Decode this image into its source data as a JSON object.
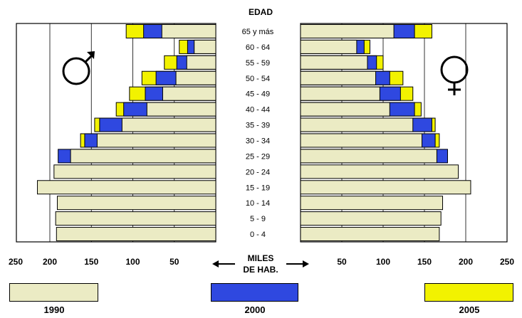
{
  "chart_data": {
    "type": "bar",
    "title": "EDAD",
    "axis_unit_label": [
      "MILES",
      "DE HAB."
    ],
    "categories": [
      "0 - 4",
      "5 - 9",
      "10 - 14",
      "15 - 19",
      "20 - 24",
      "25 - 29",
      "30 - 34",
      "35 - 39",
      "40 - 44",
      "45 - 49",
      "50 - 54",
      "55 - 59",
      "60 - 64",
      "65 y más"
    ],
    "xlim": [
      0,
      250
    ],
    "x_ticks": [
      "250",
      "200",
      "150",
      "100",
      "50",
      "50",
      "100",
      "150",
      "200",
      "250"
    ],
    "grid": true,
    "panels": [
      {
        "side": "male",
        "symbol": "♂",
        "series": [
          {
            "name": "1990",
            "values": [
              192,
              193,
              191,
              215,
              195,
              175,
              143,
              113,
              83,
              64,
              48,
              35,
              26,
              65
            ]
          },
          {
            "name": "2000",
            "values": [
              null,
              null,
              null,
              null,
              null,
              190,
              158,
              140,
              111,
              85,
              72,
              47,
              34,
              87
            ]
          },
          {
            "name": "2005",
            "values": [
              null,
              null,
              null,
              null,
              null,
              null,
              163,
              146,
              120,
              104,
              89,
              62,
              44,
              108
            ]
          }
        ]
      },
      {
        "side": "female",
        "symbol": "♀",
        "series": [
          {
            "name": "1990",
            "values": [
              168,
              170,
              172,
              206,
              191,
              165,
              147,
              136,
              108,
              96,
              91,
              81,
              68,
              113
            ]
          },
          {
            "name": "2000",
            "values": [
              null,
              null,
              null,
              null,
              null,
              178,
              163,
              159,
              138,
              121,
              108,
              92,
              77,
              138
            ]
          },
          {
            "name": "2005",
            "values": [
              null,
              null,
              null,
              null,
              null,
              null,
              168,
              163,
              146,
              136,
              124,
              100,
              84,
              159
            ]
          }
        ]
      }
    ],
    "colors": {
      "1990": "#ebebc4",
      "2000": "#2f48e0",
      "2005": "#f2f200"
    },
    "legend": [
      "1990",
      "2000",
      "2005"
    ],
    "legend_placement": "bottom"
  }
}
